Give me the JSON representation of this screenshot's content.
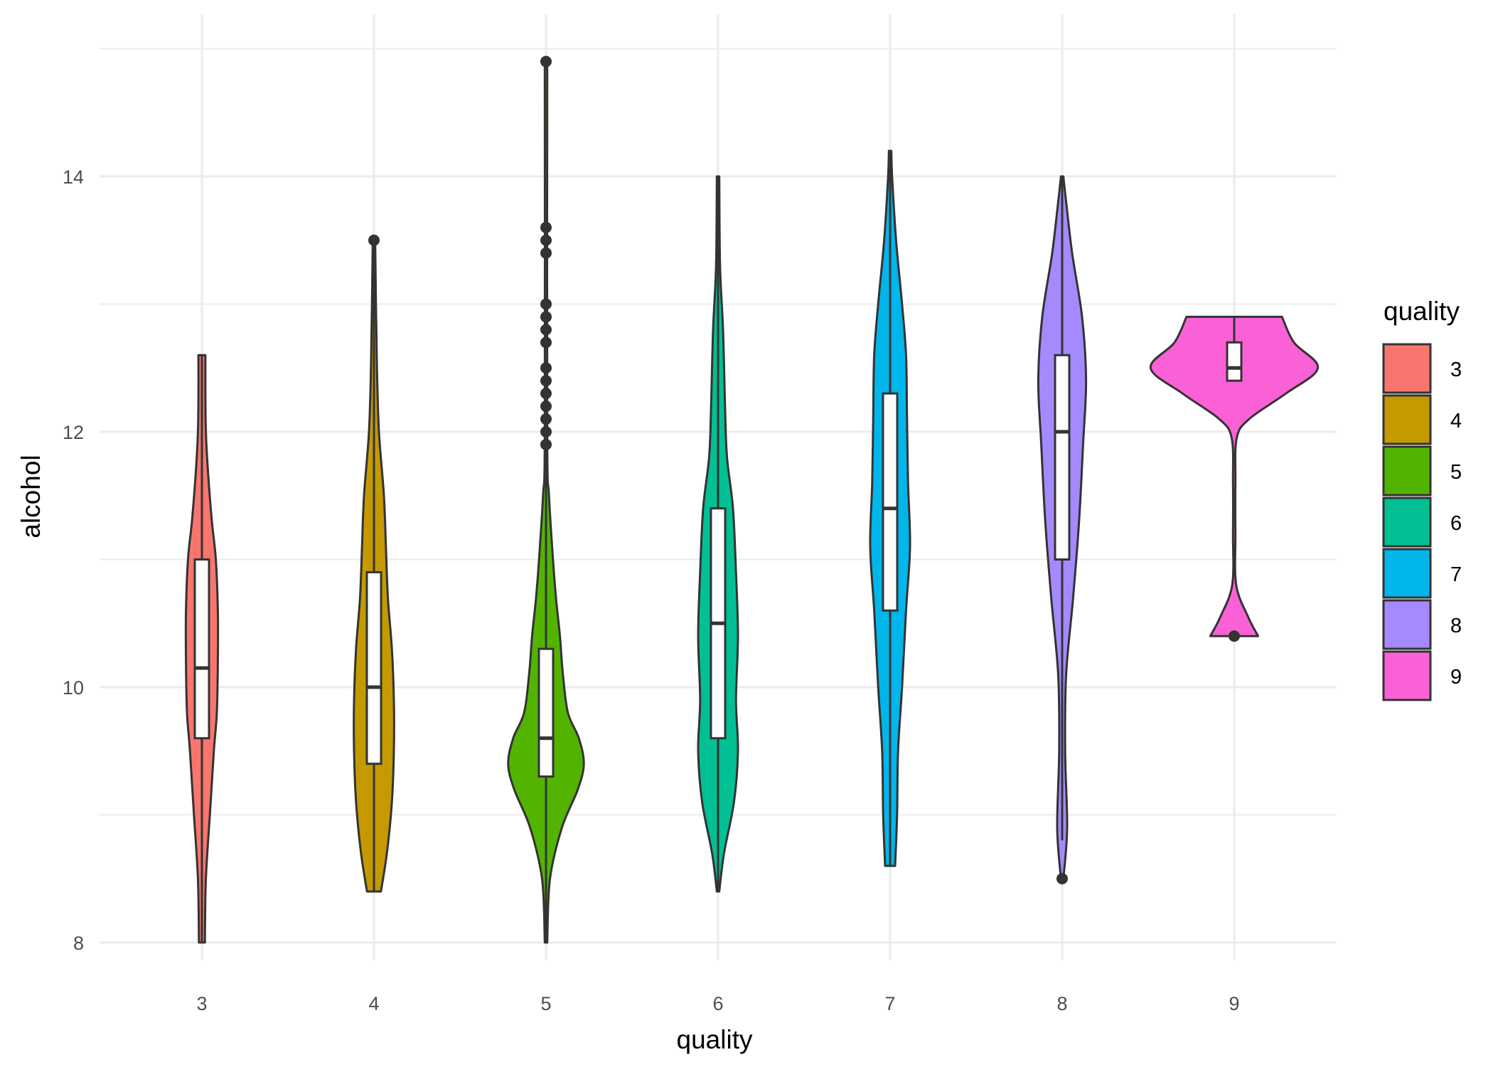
{
  "chart_data": {
    "type": "violin",
    "overlay": "boxplot",
    "xlabel": "quality",
    "ylabel": "alcohol",
    "ylim": [
      7.5,
      15.0
    ],
    "y_ticks": [
      8,
      10,
      12,
      14
    ],
    "grid": true,
    "legend": {
      "title": "quality",
      "position": "right"
    },
    "categories": [
      "3",
      "4",
      "5",
      "6",
      "7",
      "8",
      "9"
    ],
    "colors": {
      "3": "#F8766D",
      "4": "#C49A00",
      "5": "#53B400",
      "6": "#00C094",
      "7": "#00B6EB",
      "8": "#A58AFF",
      "9": "#FB61D7"
    },
    "series": [
      {
        "name": "3",
        "box": {
          "min": 8.0,
          "q1": 9.6,
          "median": 10.15,
          "q3": 11.0,
          "max": 12.6
        },
        "outliers": [],
        "density": [
          [
            8.0,
            0.03
          ],
          [
            8.5,
            0.04
          ],
          [
            9.0,
            0.08
          ],
          [
            9.5,
            0.12
          ],
          [
            9.8,
            0.15
          ],
          [
            10.2,
            0.16
          ],
          [
            10.6,
            0.16
          ],
          [
            11.0,
            0.14
          ],
          [
            11.3,
            0.1
          ],
          [
            11.7,
            0.06
          ],
          [
            12.0,
            0.04
          ],
          [
            12.3,
            0.035
          ],
          [
            12.6,
            0.035
          ]
        ]
      },
      {
        "name": "4",
        "box": {
          "min": 8.4,
          "q1": 9.4,
          "median": 10.0,
          "q3": 10.9,
          "max": 13.5
        },
        "outliers": [
          13.5
        ],
        "density": [
          [
            8.4,
            0.07
          ],
          [
            8.7,
            0.13
          ],
          [
            9.1,
            0.18
          ],
          [
            9.5,
            0.2
          ],
          [
            9.9,
            0.2
          ],
          [
            10.3,
            0.18
          ],
          [
            10.7,
            0.14
          ],
          [
            11.1,
            0.12
          ],
          [
            11.5,
            0.1
          ],
          [
            12.0,
            0.05
          ],
          [
            12.5,
            0.03
          ],
          [
            13.0,
            0.02
          ],
          [
            13.5,
            0.0
          ]
        ]
      },
      {
        "name": "5",
        "box": {
          "min": 8.0,
          "q1": 9.3,
          "median": 9.6,
          "q3": 10.3,
          "max": 11.9
        },
        "outliers": [
          11.9,
          12.0,
          12.1,
          12.2,
          12.3,
          12.4,
          12.5,
          12.7,
          12.8,
          12.9,
          13.0,
          13.4,
          13.5,
          13.6,
          14.9
        ],
        "density": [
          [
            8.0,
            0.0
          ],
          [
            8.5,
            0.04
          ],
          [
            8.9,
            0.16
          ],
          [
            9.2,
            0.32
          ],
          [
            9.4,
            0.38
          ],
          [
            9.6,
            0.33
          ],
          [
            9.8,
            0.22
          ],
          [
            10.1,
            0.17
          ],
          [
            10.4,
            0.14
          ],
          [
            10.7,
            0.1
          ],
          [
            11.0,
            0.07
          ],
          [
            11.5,
            0.03
          ],
          [
            12.0,
            0.01
          ],
          [
            14.9,
            0.0
          ]
        ]
      },
      {
        "name": "6",
        "box": {
          "min": 8.4,
          "q1": 9.6,
          "median": 10.5,
          "q3": 11.4,
          "max": 14.0
        },
        "outliers": [],
        "density": [
          [
            8.4,
            0.0
          ],
          [
            8.7,
            0.06
          ],
          [
            9.1,
            0.16
          ],
          [
            9.5,
            0.2
          ],
          [
            9.9,
            0.18
          ],
          [
            10.4,
            0.2
          ],
          [
            10.9,
            0.18
          ],
          [
            11.4,
            0.15
          ],
          [
            11.8,
            0.09
          ],
          [
            12.2,
            0.07
          ],
          [
            12.8,
            0.05
          ],
          [
            13.3,
            0.02
          ],
          [
            14.0,
            0.0
          ]
        ]
      },
      {
        "name": "7",
        "box": {
          "min": 8.6,
          "q1": 10.6,
          "median": 11.4,
          "q3": 12.3,
          "max": 14.2
        },
        "outliers": [],
        "density": [
          [
            8.6,
            0.05
          ],
          [
            9.0,
            0.07
          ],
          [
            9.5,
            0.08
          ],
          [
            10.0,
            0.12
          ],
          [
            10.6,
            0.16
          ],
          [
            11.1,
            0.2
          ],
          [
            11.6,
            0.18
          ],
          [
            12.1,
            0.17
          ],
          [
            12.6,
            0.16
          ],
          [
            13.0,
            0.12
          ],
          [
            13.5,
            0.06
          ],
          [
            14.0,
            0.02
          ],
          [
            14.2,
            0.0
          ]
        ]
      },
      {
        "name": "8",
        "box": {
          "min": 8.8,
          "q1": 11.0,
          "median": 12.0,
          "q3": 12.6,
          "max": 14.0
        },
        "outliers": [
          8.5
        ],
        "density": [
          [
            8.5,
            0.0
          ],
          [
            8.9,
            0.05
          ],
          [
            9.5,
            0.03
          ],
          [
            10.1,
            0.04
          ],
          [
            10.7,
            0.11
          ],
          [
            11.3,
            0.17
          ],
          [
            11.9,
            0.21
          ],
          [
            12.4,
            0.24
          ],
          [
            12.9,
            0.2
          ],
          [
            13.4,
            0.1
          ],
          [
            13.8,
            0.04
          ],
          [
            14.0,
            0.0
          ]
        ]
      },
      {
        "name": "9",
        "box": {
          "min": 12.4,
          "q1": 12.4,
          "median": 12.5,
          "q3": 12.7,
          "max": 12.9
        },
        "outliers": [
          10.4
        ],
        "density": [
          [
            10.4,
            0.24
          ],
          [
            10.55,
            0.14
          ],
          [
            10.8,
            0.02
          ],
          [
            11.2,
            0.005
          ],
          [
            11.6,
            0.005
          ],
          [
            11.95,
            0.025
          ],
          [
            12.1,
            0.15
          ],
          [
            12.3,
            0.52
          ],
          [
            12.5,
            0.84
          ],
          [
            12.7,
            0.6
          ],
          [
            12.9,
            0.48
          ]
        ]
      }
    ]
  }
}
